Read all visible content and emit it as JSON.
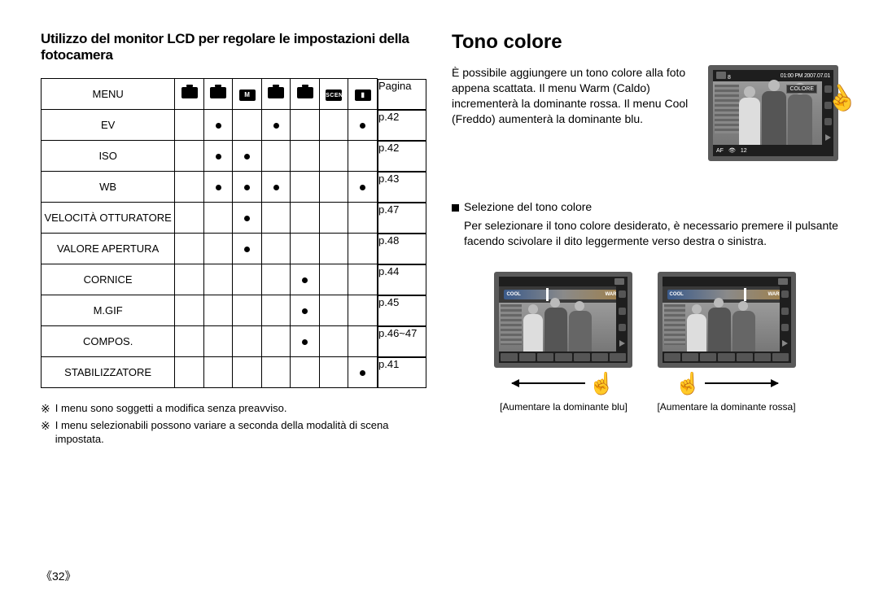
{
  "left": {
    "heading": "Utilizzo del monitor LCD per regolare le impostazioni della fotocamera",
    "table": {
      "header": {
        "menu": "MENU",
        "page": "Pagina",
        "icons": [
          "cam",
          "cam",
          "M",
          "cam",
          "cam",
          "SCENE",
          "vid"
        ]
      },
      "rows": [
        {
          "label": "EV",
          "dots": [
            0,
            1,
            0,
            1,
            0,
            0,
            1
          ],
          "page": "p.42"
        },
        {
          "label": "ISO",
          "dots": [
            0,
            1,
            1,
            0,
            0,
            0,
            0
          ],
          "page": "p.42"
        },
        {
          "label": "WB",
          "dots": [
            0,
            1,
            1,
            1,
            0,
            0,
            1
          ],
          "page": "p.43"
        },
        {
          "label": "VELOCITÀ OTTURATORE",
          "dots": [
            0,
            0,
            1,
            0,
            0,
            0,
            0
          ],
          "page": "p.47"
        },
        {
          "label": "VALORE APERTURA",
          "dots": [
            0,
            0,
            1,
            0,
            0,
            0,
            0
          ],
          "page": "p.48"
        },
        {
          "label": "CORNICE",
          "dots": [
            0,
            0,
            0,
            0,
            1,
            0,
            0
          ],
          "page": "p.44"
        },
        {
          "label": "M.GIF",
          "dots": [
            0,
            0,
            0,
            0,
            1,
            0,
            0
          ],
          "page": "p.45"
        },
        {
          "label": "COMPOS.",
          "dots": [
            0,
            0,
            0,
            0,
            1,
            0,
            0
          ],
          "page": "p.46~47"
        },
        {
          "label": "STABILIZZATORE",
          "dots": [
            0,
            0,
            0,
            0,
            0,
            0,
            1
          ],
          "page": "p.41"
        }
      ]
    },
    "notes": [
      "I menu sono soggetti a modifica senza preavviso.",
      "I menu selezionabili possono variare a seconda della modalità di scena impostata."
    ]
  },
  "right": {
    "heading": "Tono colore",
    "intro": "È possibile aggiungere un tono colore alla foto appena scattata. Il menu Warm (Caldo) incrementerà la dominante rossa. Il menu Cool (Freddo) aumenterà la dominante blu.",
    "lcd_main": {
      "top_left_count": "8",
      "top_right": "01:00 PM 2007.07.01",
      "chip": "COLORE",
      "bottom": {
        "af": "AF",
        "num": "12"
      }
    },
    "section_title": "Selezione del tono colore",
    "section_body": "Per selezionare il tono colore desiderato, è necessario premere il pulsante facendo scivolare il dito leggermente verso destra o sinistra.",
    "slider": {
      "cool": "COOL",
      "warm": "WARM"
    },
    "captions": {
      "left": "[Aumentare la dominante blu]",
      "right": "[Aumentare la dominante rossa]"
    }
  },
  "page_number": "《32》",
  "note_marker": "※"
}
